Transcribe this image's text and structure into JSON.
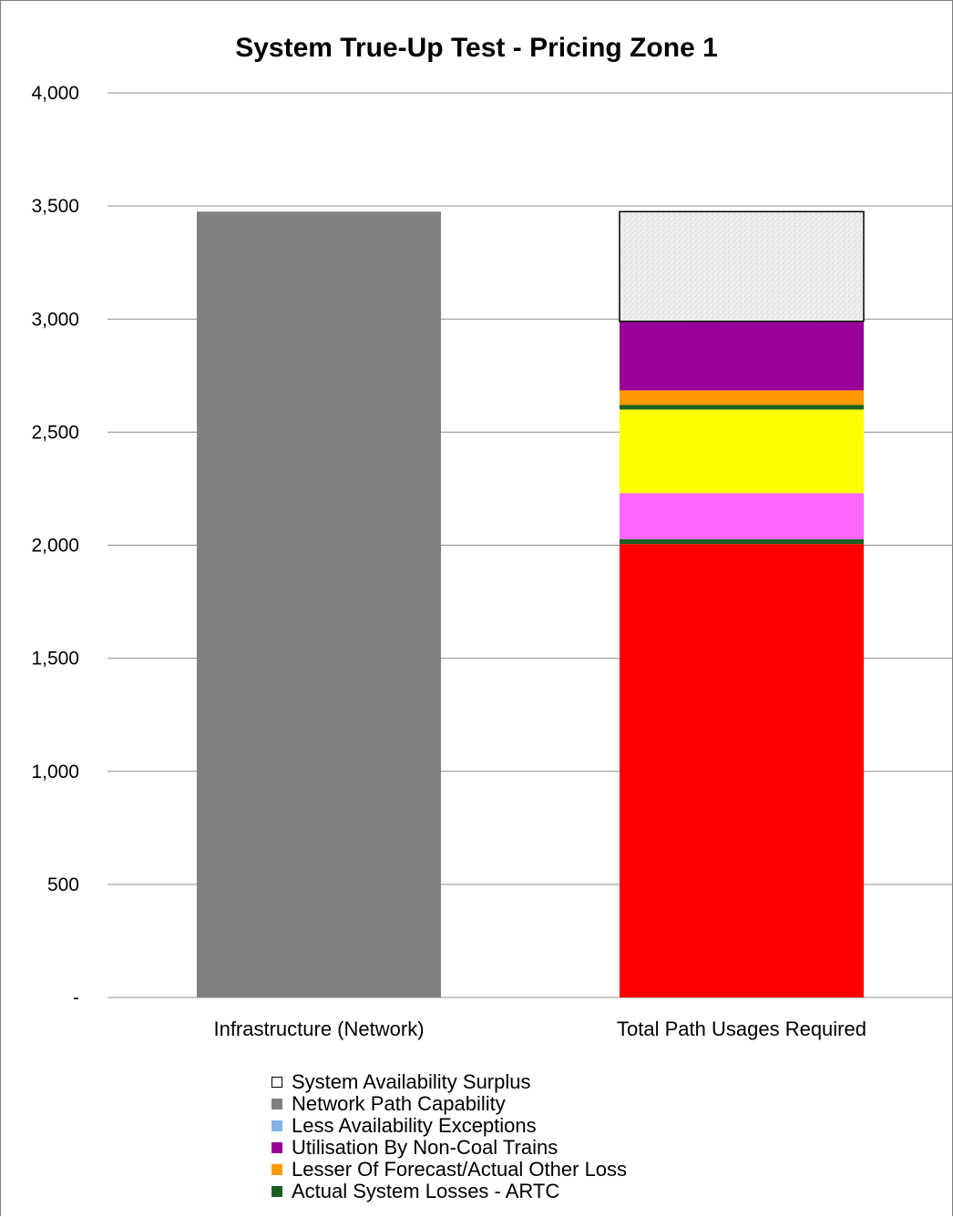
{
  "chart_data": {
    "type": "bar",
    "stacked": true,
    "title": "System True-Up Test - Pricing Zone 1",
    "xlabel": "",
    "ylabel": "",
    "ylim": [
      0,
      4000
    ],
    "yticks": [
      0,
      500,
      1000,
      1500,
      2000,
      2500,
      3000,
      3500,
      4000
    ],
    "ytick_labels": [
      "-",
      "500",
      "1,000",
      "1,500",
      "2,000",
      "2,500",
      "3,000",
      "3,500",
      "4,000"
    ],
    "grid": true,
    "legend_position": "bottom",
    "categories": [
      "Infrastructure (Network)",
      "Total Path Usages Required"
    ],
    "series": [
      {
        "name": "Network Path Capability",
        "color": "#808080",
        "values": [
          3475,
          0
        ]
      },
      {
        "name": "",
        "color": "#ff0000",
        "values": [
          0,
          2005
        ]
      },
      {
        "name": "",
        "color": "#1a5e20",
        "values": [
          0,
          22
        ]
      },
      {
        "name": "",
        "color": "#ff66ff",
        "values": [
          0,
          203
        ]
      },
      {
        "name": "",
        "color": "#ffff00",
        "values": [
          0,
          370
        ]
      },
      {
        "name": "Actual System Losses - ARTC",
        "color": "#1a5e20",
        "values": [
          0,
          20
        ]
      },
      {
        "name": "Lesser Of Forecast/Actual Other Loss",
        "color": "#ff9900",
        "values": [
          0,
          65
        ]
      },
      {
        "name": "Utilisation By Non-Coal Trains",
        "color": "#990099",
        "values": [
          0,
          305
        ]
      },
      {
        "name": "Less Availability Exceptions",
        "color": "#7fb2e5",
        "values": [
          0,
          0
        ]
      },
      {
        "name": "System Availability Surplus",
        "color": "#eeeeee",
        "values": [
          0,
          485
        ]
      }
    ],
    "legend": [
      {
        "label": "System Availability Surplus",
        "color": "#ffffff",
        "outlined": true
      },
      {
        "label": "Network Path Capability",
        "color": "#808080"
      },
      {
        "label": "Less Availability Exceptions",
        "color": "#7fb2e5"
      },
      {
        "label": "Utilisation By Non-Coal Trains",
        "color": "#990099"
      },
      {
        "label": "Lesser Of Forecast/Actual Other Loss",
        "color": "#ff9900"
      },
      {
        "label": "Actual System Losses - ARTC",
        "color": "#1a5e20"
      }
    ]
  }
}
